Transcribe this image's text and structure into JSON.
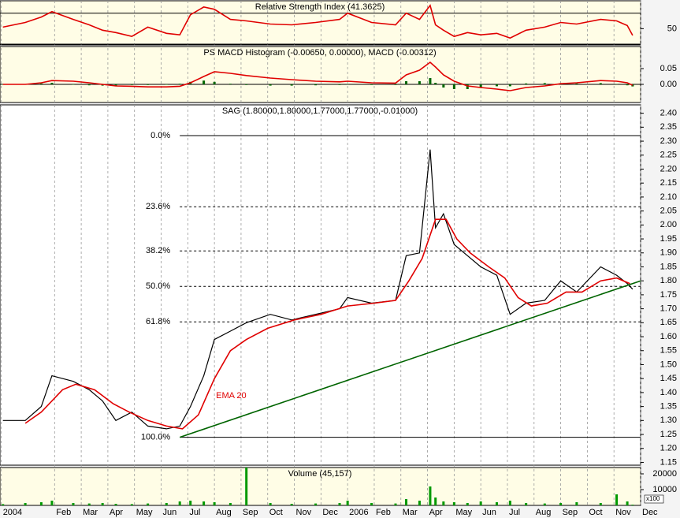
{
  "chart_data": [
    {
      "type": "line",
      "title": "Relative Strength Index (41.3625)",
      "ylim": [
        29,
        86
      ],
      "yticks": [
        50
      ],
      "levels": [
        30,
        70
      ],
      "series": [
        {
          "color": "#e00000",
          "x": [
            0.06,
            0.9,
            1.5,
            1.9,
            2.7,
            3.3,
            3.8,
            4.3,
            4.9,
            5.5,
            6.2,
            6.7,
            7.1,
            7.6,
            8.0,
            8.6,
            9.2,
            10.1,
            10.9,
            11.8,
            12.7,
            13.0,
            13.9,
            14.8,
            15.2,
            15.7,
            16.1,
            16.3,
            16.6,
            17.0,
            17.5,
            18.0,
            18.6,
            19.1,
            19.7,
            20.4,
            21.0,
            21.6,
            22.5,
            23.1,
            23.5,
            23.7
          ],
          "values": [
            52,
            58,
            65,
            72,
            62,
            55,
            48,
            45,
            40,
            52,
            44,
            42,
            68,
            78,
            75,
            62,
            60,
            56,
            55,
            58,
            62,
            70,
            58,
            55,
            70,
            62,
            80,
            55,
            48,
            40,
            45,
            42,
            44,
            38,
            48,
            52,
            58,
            56,
            62,
            60,
            54,
            41.36
          ]
        }
      ]
    },
    {
      "type": "line",
      "title": "PS MACD Histogram (-0.00650, 0.00000), MACD (-0.00312)",
      "ylim": [
        -0.0575,
        0.12
      ],
      "yticks": [
        {
          "value": 0.05,
          "label": "0.05"
        },
        {
          "value": 0,
          "label": "0.00"
        }
      ],
      "levels": [
        0
      ],
      "series": [
        {
          "type": "bar",
          "color": "#006600",
          "x": [
            0.06,
            0.9,
            1.5,
            1.9,
            2.7,
            3.3,
            3.8,
            4.3,
            4.9,
            5.5,
            6.2,
            6.7,
            7.1,
            7.6,
            8.0,
            8.6,
            9.2,
            10.1,
            10.9,
            11.8,
            12.7,
            13.0,
            13.9,
            14.8,
            15.2,
            15.7,
            16.1,
            16.3,
            16.6,
            17.0,
            17.5,
            18.0,
            18.6,
            19.1,
            19.7,
            20.4,
            21.0,
            21.6,
            22.5,
            23.1,
            23.5,
            23.7
          ],
          "values": [
            0,
            0,
            0.003,
            0.005,
            0,
            -0.003,
            -0.004,
            -0.004,
            -0.002,
            -0.002,
            0,
            0.002,
            0.008,
            0.012,
            0.008,
            0.002,
            -0.002,
            -0.004,
            -0.004,
            -0.003,
            -0.002,
            0.001,
            -0.002,
            -0.002,
            0.01,
            0.01,
            0.02,
            0.005,
            -0.01,
            -0.015,
            -0.015,
            -0.01,
            -0.006,
            -0.006,
            0.003,
            0.004,
            0.004,
            0.003,
            0.004,
            0.001,
            -0.003,
            -0.0065
          ]
        },
        {
          "color": "#e00000",
          "x": [
            0.06,
            0.9,
            1.5,
            1.9,
            2.7,
            3.3,
            3.8,
            4.3,
            4.9,
            5.5,
            6.2,
            6.7,
            7.1,
            7.6,
            8.0,
            8.6,
            9.2,
            10.1,
            10.9,
            11.8,
            12.7,
            13.0,
            13.9,
            14.8,
            15.2,
            15.7,
            16.1,
            16.3,
            16.6,
            17.0,
            17.5,
            18.0,
            18.6,
            19.1,
            19.7,
            20.4,
            21.0,
            21.6,
            22.5,
            23.1,
            23.5,
            23.7
          ],
          "values": [
            0,
            0,
            0.005,
            0.012,
            0.01,
            0.005,
            0,
            -0.005,
            -0.006,
            -0.008,
            -0.008,
            -0.006,
            0.005,
            0.025,
            0.04,
            0.035,
            0.028,
            0.02,
            0.015,
            0.01,
            0.008,
            0.01,
            0.005,
            0.004,
            0.03,
            0.045,
            0.07,
            0.055,
            0.03,
            0.01,
            -0.005,
            -0.01,
            -0.015,
            -0.02,
            -0.01,
            -0.005,
            0.002,
            0.005,
            0.012,
            0.01,
            0.005,
            -0.00312
          ]
        }
      ]
    },
    {
      "type": "line",
      "title": "SAG (1.80000,1.80000,1.77000,1.77000,-0.01000)",
      "ylim": [
        1.14,
        2.43
      ],
      "yticks": [
        {
          "value": 2.4,
          "label": "2.40"
        },
        2.35,
        {
          "value": 2.3,
          "label": "2.30"
        },
        2.25,
        {
          "value": 2.2,
          "label": "2.20"
        },
        2.15,
        {
          "value": 2.1,
          "label": "2.10"
        },
        2.05,
        {
          "value": 2.0,
          "label": "2.00"
        },
        1.95,
        {
          "value": 1.9,
          "label": "1.90"
        },
        1.85,
        {
          "value": 1.8,
          "label": "1.80"
        },
        1.75,
        {
          "value": 1.7,
          "label": "1.70"
        },
        1.65,
        {
          "value": 1.6,
          "label": "1.60"
        },
        1.55,
        {
          "value": 1.5,
          "label": "1.50"
        },
        1.45,
        {
          "value": 1.4,
          "label": "1.40"
        },
        1.35,
        {
          "value": 1.3,
          "label": "1.30"
        },
        1.25,
        {
          "value": 1.2,
          "label": "1.20"
        },
        1.15
      ],
      "fib_levels": [
        {
          "label": "0.0%",
          "value": 2.32
        },
        {
          "label": "23.6%",
          "value": 2.065
        },
        {
          "label": "38.2%",
          "value": 1.907
        },
        {
          "label": "50.0%",
          "value": 1.78
        },
        {
          "label": "61.8%",
          "value": 1.653
        },
        {
          "label": "100.0%",
          "value": 1.24
        }
      ],
      "series": [
        {
          "color": "#000000",
          "x": [
            0.06,
            0.9,
            1.5,
            1.9,
            2.7,
            3.3,
            3.8,
            4.3,
            4.9,
            5.5,
            6.2,
            6.7,
            7.1,
            7.6,
            8.0,
            8.6,
            9.2,
            10.1,
            10.9,
            11.8,
            12.7,
            13.0,
            13.9,
            14.8,
            15.2,
            15.7,
            16.1,
            16.3,
            16.6,
            17.0,
            17.5,
            18.0,
            18.6,
            19.1,
            19.7,
            20.4,
            21.0,
            21.6,
            22.5,
            23.1,
            23.5,
            23.7
          ],
          "values": [
            1.3,
            1.3,
            1.35,
            1.46,
            1.44,
            1.41,
            1.37,
            1.3,
            1.33,
            1.28,
            1.27,
            1.28,
            1.35,
            1.46,
            1.59,
            1.62,
            1.65,
            1.68,
            1.66,
            1.68,
            1.7,
            1.74,
            1.72,
            1.73,
            1.89,
            1.9,
            2.27,
            1.99,
            2.04,
            1.93,
            1.89,
            1.85,
            1.82,
            1.68,
            1.72,
            1.73,
            1.8,
            1.76,
            1.85,
            1.82,
            1.79,
            1.77
          ]
        },
        {
          "name": "EMA 20",
          "color": "#e00000",
          "x": [
            0.9,
            1.5,
            2.3,
            2.8,
            3.5,
            4.2,
            4.8,
            5.5,
            6.2,
            6.8,
            7.4,
            8.0,
            8.6,
            9.2,
            10.0,
            11.0,
            12.0,
            13.0,
            14.0,
            14.8,
            15.3,
            15.8,
            16.3,
            16.7,
            17.1,
            17.6,
            18.3,
            18.9,
            19.4,
            19.9,
            20.5,
            21.2,
            21.8,
            22.5,
            23.1,
            23.6
          ],
          "values": [
            1.29,
            1.33,
            1.41,
            1.43,
            1.41,
            1.36,
            1.33,
            1.3,
            1.28,
            1.27,
            1.32,
            1.45,
            1.55,
            1.59,
            1.63,
            1.66,
            1.68,
            1.71,
            1.72,
            1.73,
            1.8,
            1.88,
            2.02,
            2.02,
            1.95,
            1.9,
            1.85,
            1.81,
            1.74,
            1.71,
            1.72,
            1.76,
            1.76,
            1.8,
            1.81,
            1.79
          ]
        },
        {
          "color": "#006400",
          "x": [
            6.7,
            24
          ],
          "values": [
            1.24,
            1.8
          ]
        }
      ]
    },
    {
      "type": "bar",
      "title": "Volume (45,157)",
      "unit_label": "x100",
      "ylim": [
        0,
        24000
      ],
      "yticks": [
        20000,
        10000
      ],
      "xlim": [
        -0.05,
        24
      ],
      "xticks": [
        {
          "value": 0,
          "label": "2004"
        },
        {
          "value": 2,
          "label": "Feb"
        },
        {
          "value": 3,
          "label": "Mar"
        },
        {
          "value": 4,
          "label": "Apr"
        },
        {
          "value": 5,
          "label": "May"
        },
        {
          "value": 6,
          "label": "Jun"
        },
        {
          "value": 7,
          "label": "Jul"
        },
        {
          "value": 8,
          "label": "Aug"
        },
        {
          "value": 9,
          "label": "Sep"
        },
        {
          "value": 10,
          "label": "Oct"
        },
        {
          "value": 11,
          "label": "Nov"
        },
        {
          "value": 12,
          "label": "Dec"
        },
        {
          "value": 13,
          "label": "2006"
        },
        {
          "value": 14,
          "label": "Feb"
        },
        {
          "value": 15,
          "label": "Mar"
        },
        {
          "value": 16,
          "label": "Apr"
        },
        {
          "value": 17,
          "label": "May"
        },
        {
          "value": 18,
          "label": "Jun"
        },
        {
          "value": 19,
          "label": "Jul"
        },
        {
          "value": 20,
          "label": "Aug"
        },
        {
          "value": 21,
          "label": "Sep"
        },
        {
          "value": 22,
          "label": "Oct"
        },
        {
          "value": 23,
          "label": "Nov"
        },
        {
          "value": 24,
          "label": "Dec"
        }
      ],
      "series": [
        {
          "color": "#009900",
          "x": [
            0.06,
            0.9,
            1.5,
            1.9,
            2.7,
            3.3,
            3.8,
            4.3,
            4.9,
            5.5,
            6.2,
            6.7,
            7.1,
            7.6,
            8.0,
            8.6,
            9.2,
            10.1,
            10.9,
            11.8,
            12.7,
            13.0,
            13.9,
            14.8,
            15.2,
            15.7,
            16.1,
            16.3,
            16.6,
            17.0,
            17.5,
            18.0,
            18.6,
            19.1,
            19.7,
            20.4,
            21.0,
            21.6,
            22.5,
            23.1,
            23.5,
            23.7
          ],
          "values": [
            800,
            1500,
            2000,
            3000,
            1500,
            1200,
            1500,
            1000,
            800,
            1200,
            1500,
            2500,
            3000,
            2500,
            2000,
            1500,
            24000,
            1500,
            1000,
            1200,
            1500,
            3000,
            1500,
            1200,
            4000,
            3000,
            12000,
            5000,
            2500,
            2000,
            1500,
            2500,
            2000,
            3000,
            1500,
            1200,
            1500,
            2000,
            1500,
            7000,
            2500,
            451.57
          ]
        }
      ]
    }
  ]
}
